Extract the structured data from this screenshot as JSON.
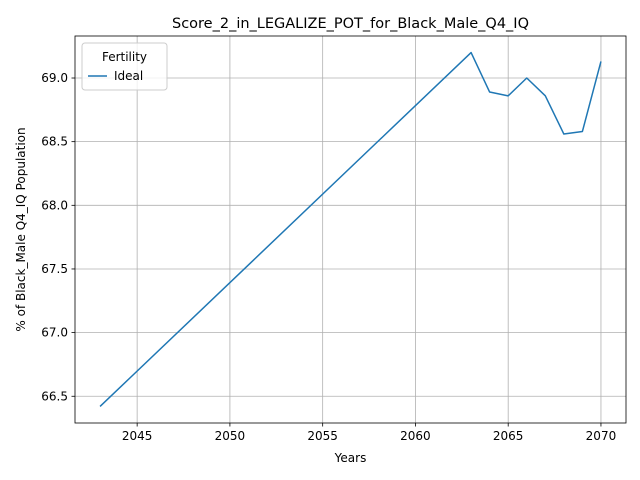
{
  "chart_data": {
    "type": "line",
    "title": "Score_2_in_LEGALIZE_POT_for_Black_Male_Q4_IQ",
    "xlabel": "Years",
    "ylabel": "% of Black_Male Q4_IQ Population",
    "xlim": [
      2041.65,
      2071.35
    ],
    "ylim": [
      66.29,
      69.33
    ],
    "xticks": [
      2045,
      2050,
      2055,
      2060,
      2065,
      2070
    ],
    "yticks": [
      66.5,
      67.0,
      67.5,
      68.0,
      68.5,
      69.0
    ],
    "xtick_labels": [
      "2045",
      "2050",
      "2055",
      "2060",
      "2065",
      "2070"
    ],
    "ytick_labels": [
      "66.5",
      "67.0",
      "67.5",
      "68.0",
      "68.5",
      "69.0"
    ],
    "grid": true,
    "legend": {
      "title": "Fertility",
      "placement": "upper-left"
    },
    "series": [
      {
        "name": "Ideal",
        "color": "#1f77b4",
        "x": [
          2043,
          2063,
          2064,
          2065,
          2066,
          2067,
          2068,
          2069,
          2070
        ],
        "y": [
          66.42,
          69.2,
          68.89,
          68.86,
          69.0,
          68.86,
          68.56,
          68.58,
          69.13
        ]
      }
    ]
  }
}
